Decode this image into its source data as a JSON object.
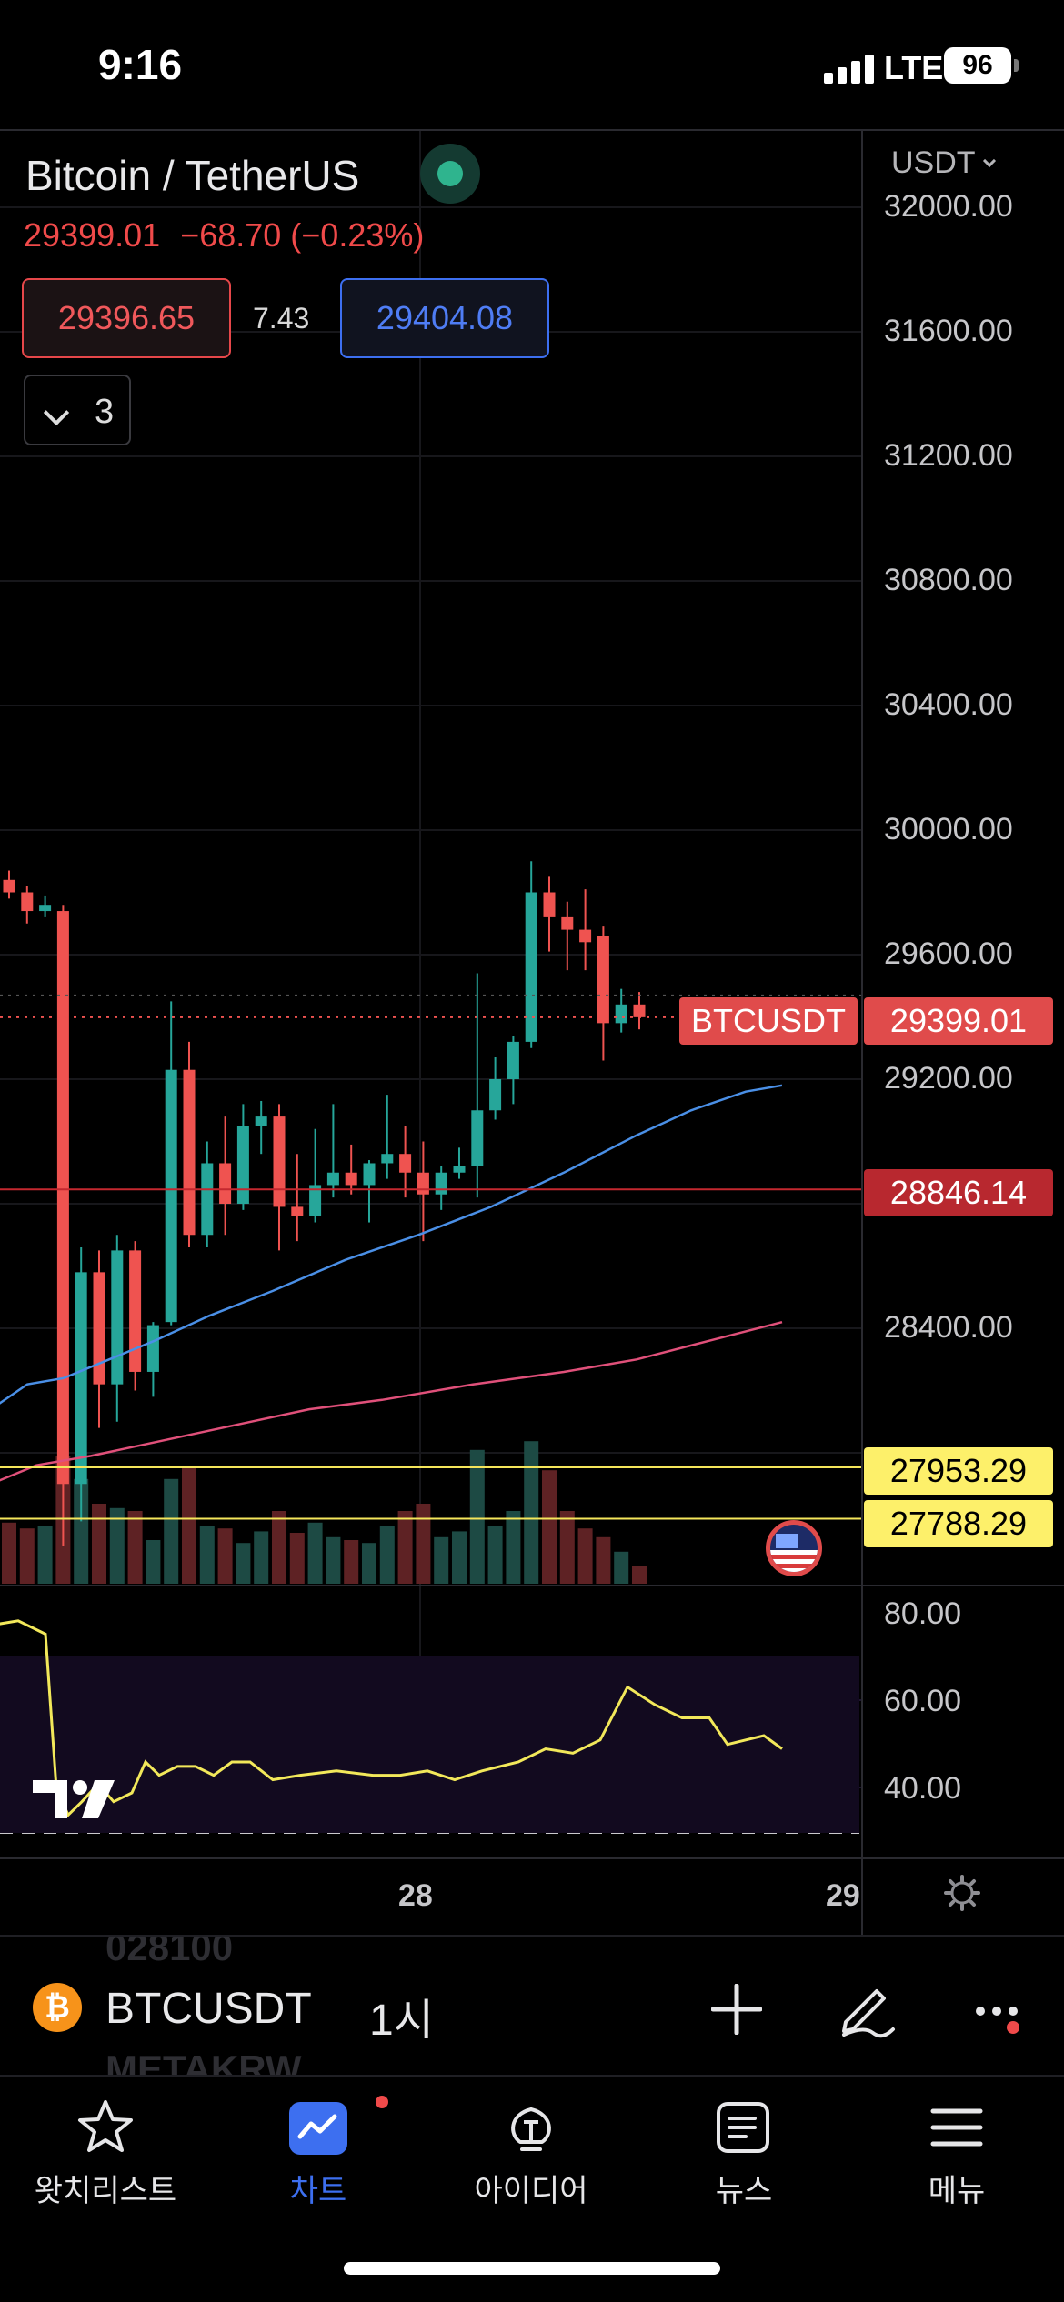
{
  "status_bar": {
    "time": "9:16",
    "network": "LTE",
    "battery": "96"
  },
  "symbol": {
    "title": "Bitcoin / TetherUS",
    "last_price": "29399.01",
    "change": "−68.70 (−0.23%)",
    "bid": "29396.65",
    "spread": "7.43",
    "ask": "29404.08",
    "indicator_count": "3"
  },
  "axis": {
    "currency": "USDT",
    "price_ticks": [
      "32000.00",
      "31600.00",
      "31200.00",
      "30800.00",
      "30400.00",
      "30000.00",
      "29600.00",
      "29200.00",
      "28400.00"
    ],
    "osc_ticks": [
      "80.00",
      "60.00",
      "40.00"
    ],
    "time_labels": [
      "28",
      "29"
    ]
  },
  "price_tags": {
    "symbol_tag": "BTCUSDT",
    "last": "29399.01",
    "ma": "28846.14",
    "alert_1": "27953.29",
    "alert_2": "27788.29"
  },
  "colors": {
    "up": "#26a69a",
    "down": "#ef5350",
    "ma_fast": "#4a8fe6",
    "ma_slow": "#e0507a",
    "oscillator": "#f2e85a",
    "alert_line": "#f5e65b",
    "accent": "#3d6ff0"
  },
  "candles": [
    [
      29840,
      29870,
      29780,
      29800
    ],
    [
      29800,
      29820,
      29700,
      29740
    ],
    [
      29740,
      29790,
      29720,
      29760
    ],
    [
      29740,
      29760,
      27700,
      27900
    ],
    [
      27900,
      28660,
      27780,
      28580
    ],
    [
      28580,
      28650,
      28080,
      28220
    ],
    [
      28220,
      28700,
      28100,
      28650
    ],
    [
      28650,
      28680,
      28200,
      28260
    ],
    [
      28260,
      28420,
      28180,
      28410
    ],
    [
      28420,
      29450,
      28410,
      29230
    ],
    [
      29230,
      29320,
      28660,
      28700
    ],
    [
      28700,
      29000,
      28660,
      28930
    ],
    [
      28930,
      29080,
      28700,
      28800
    ],
    [
      28800,
      29120,
      28780,
      29050
    ],
    [
      29050,
      29130,
      28960,
      29080
    ],
    [
      29080,
      29120,
      28650,
      28790
    ],
    [
      28790,
      28960,
      28680,
      28760
    ],
    [
      28760,
      29040,
      28740,
      28860
    ],
    [
      28860,
      29120,
      28820,
      28900
    ],
    [
      28900,
      28990,
      28830,
      28860
    ],
    [
      28860,
      28940,
      28740,
      28930
    ],
    [
      28930,
      29150,
      28880,
      28960
    ],
    [
      28960,
      29050,
      28820,
      28900
    ],
    [
      28900,
      29000,
      28680,
      28830
    ],
    [
      28830,
      28920,
      28780,
      28900
    ],
    [
      28900,
      28980,
      28880,
      28920
    ],
    [
      28920,
      29540,
      28820,
      29100
    ],
    [
      29100,
      29270,
      29070,
      29200
    ],
    [
      29200,
      29340,
      29120,
      29320
    ],
    [
      29320,
      29900,
      29300,
      29800
    ],
    [
      29800,
      29850,
      29610,
      29720
    ],
    [
      29720,
      29770,
      29550,
      29680
    ],
    [
      29680,
      29810,
      29550,
      29640
    ],
    [
      29660,
      29690,
      29260,
      29380
    ],
    [
      29380,
      29490,
      29350,
      29440
    ],
    [
      29440,
      29480,
      29360,
      29399.01
    ]
  ],
  "volumes": [
    0.42,
    0.38,
    0.4,
    0.88,
    0.72,
    0.55,
    0.52,
    0.5,
    0.3,
    0.72,
    0.8,
    0.4,
    0.38,
    0.28,
    0.36,
    0.5,
    0.35,
    0.42,
    0.32,
    0.3,
    0.28,
    0.4,
    0.5,
    0.55,
    0.32,
    0.36,
    0.92,
    0.4,
    0.5,
    0.98,
    0.78,
    0.5,
    0.38,
    0.32,
    0.22,
    0.12
  ],
  "ma_fast": [
    [
      -10,
      28140
    ],
    [
      30,
      28220
    ],
    [
      70,
      28240
    ],
    [
      120,
      28300
    ],
    [
      170,
      28360
    ],
    [
      230,
      28440
    ],
    [
      300,
      28520
    ],
    [
      380,
      28620
    ],
    [
      460,
      28700
    ],
    [
      540,
      28790
    ],
    [
      620,
      28900
    ],
    [
      700,
      29020
    ],
    [
      760,
      29100
    ],
    [
      820,
      29160
    ],
    [
      860,
      29180
    ]
  ],
  "ma_slow": [
    [
      -10,
      27900
    ],
    [
      40,
      27960
    ],
    [
      100,
      27990
    ],
    [
      180,
      28040
    ],
    [
      260,
      28090
    ],
    [
      340,
      28140
    ],
    [
      420,
      28170
    ],
    [
      520,
      28220
    ],
    [
      620,
      28260
    ],
    [
      700,
      28300
    ],
    [
      780,
      28360
    ],
    [
      860,
      28420
    ]
  ],
  "oscillator": [
    [
      -10,
      78
    ],
    [
      20,
      79
    ],
    [
      50,
      76
    ],
    [
      62,
      41
    ],
    [
      75,
      35
    ],
    [
      90,
      38
    ],
    [
      108,
      42
    ],
    [
      125,
      38
    ],
    [
      145,
      40
    ],
    [
      160,
      47
    ],
    [
      175,
      44
    ],
    [
      195,
      46
    ],
    [
      215,
      46
    ],
    [
      235,
      44
    ],
    [
      255,
      47
    ],
    [
      275,
      47
    ],
    [
      300,
      43
    ],
    [
      330,
      44
    ],
    [
      370,
      45
    ],
    [
      410,
      44
    ],
    [
      440,
      44
    ],
    [
      470,
      45
    ],
    [
      500,
      43
    ],
    [
      530,
      45
    ],
    [
      570,
      47
    ],
    [
      600,
      50
    ],
    [
      630,
      49
    ],
    [
      660,
      52
    ],
    [
      690,
      64
    ],
    [
      720,
      60
    ],
    [
      750,
      57
    ],
    [
      780,
      57
    ],
    [
      800,
      51
    ],
    [
      820,
      52
    ],
    [
      840,
      53
    ],
    [
      860,
      50
    ]
  ],
  "symbol_strip": {
    "symbol": "BTCUSDT",
    "interval": "1시",
    "ghost_above": "028100",
    "ghost_below": "METAKRW"
  },
  "tabs": [
    {
      "label": "왓치리스트",
      "icon": "star-icon"
    },
    {
      "label": "차트",
      "icon": "chart-icon"
    },
    {
      "label": "아이디어",
      "icon": "lightbulb-icon"
    },
    {
      "label": "뉴스",
      "icon": "news-icon"
    },
    {
      "label": "메뉴",
      "icon": "menu-icon"
    }
  ]
}
